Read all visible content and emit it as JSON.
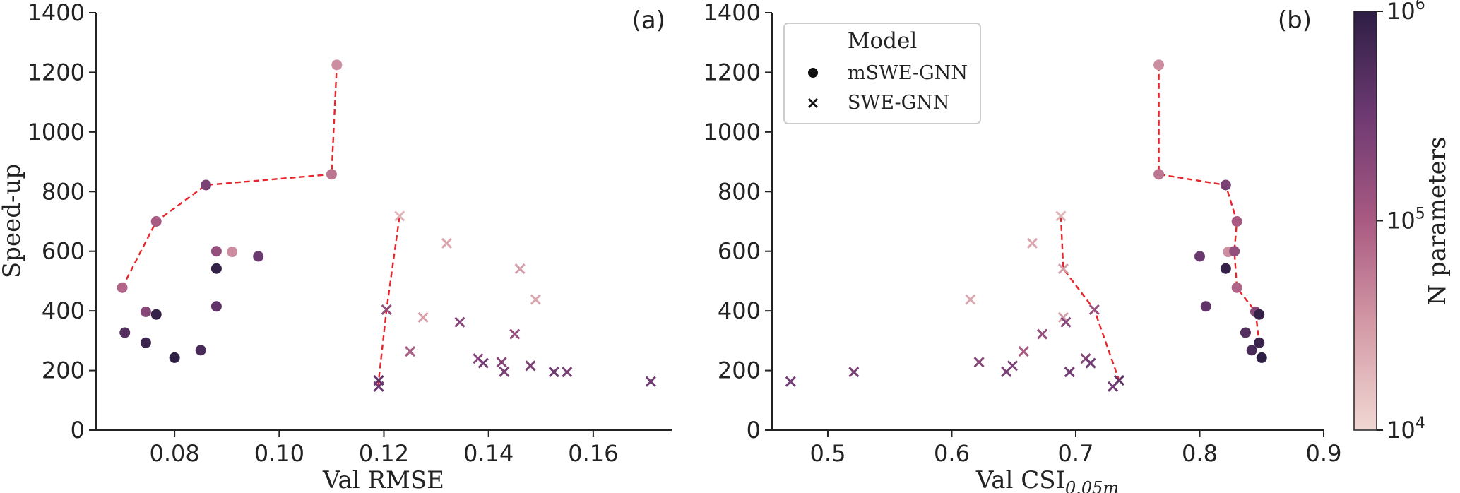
{
  "chart_data": [
    {
      "type": "scatter",
      "panel_label": "(a)",
      "xlabel": "Val RMSE",
      "ylabel": "Speed-up",
      "xlim": [
        0.065,
        0.175
      ],
      "ylim": [
        0,
        1400
      ],
      "xticks": [
        "0.08",
        "0.10",
        "0.12",
        "0.14",
        "0.16"
      ],
      "xtick_values": [
        0.08,
        0.1,
        0.12,
        0.14,
        0.16
      ],
      "yticks": [
        "0",
        "200",
        "400",
        "600",
        "800",
        "1000",
        "1200",
        "1400"
      ],
      "ytick_values": [
        0,
        200,
        400,
        600,
        800,
        1000,
        1200,
        1400
      ],
      "series": [
        {
          "name": "mSWE-GNN",
          "marker": "circle",
          "points": [
            {
              "x": 0.07,
              "y": 478,
              "n": 80000
            },
            {
              "x": 0.0765,
              "y": 700,
              "n": 100000
            },
            {
              "x": 0.086,
              "y": 822,
              "n": 250000
            },
            {
              "x": 0.11,
              "y": 858,
              "n": 60000
            },
            {
              "x": 0.111,
              "y": 1225,
              "n": 40000
            },
            {
              "x": 0.088,
              "y": 600,
              "n": 150000
            },
            {
              "x": 0.091,
              "y": 598,
              "n": 40000
            },
            {
              "x": 0.096,
              "y": 583,
              "n": 350000
            },
            {
              "x": 0.088,
              "y": 542,
              "n": 900000
            },
            {
              "x": 0.088,
              "y": 415,
              "n": 400000
            },
            {
              "x": 0.0745,
              "y": 397,
              "n": 200000
            },
            {
              "x": 0.0765,
              "y": 388,
              "n": 900000
            },
            {
              "x": 0.0705,
              "y": 327,
              "n": 500000
            },
            {
              "x": 0.0745,
              "y": 293,
              "n": 800000
            },
            {
              "x": 0.08,
              "y": 243,
              "n": 1000000
            },
            {
              "x": 0.085,
              "y": 268,
              "n": 600000
            }
          ]
        },
        {
          "name": "SWE-GNN",
          "marker": "x",
          "points": [
            {
              "x": 0.123,
              "y": 718,
              "n": 20000
            },
            {
              "x": 0.132,
              "y": 627,
              "n": 25000
            },
            {
              "x": 0.146,
              "y": 541,
              "n": 30000
            },
            {
              "x": 0.149,
              "y": 438,
              "n": 25000
            },
            {
              "x": 0.1205,
              "y": 404,
              "n": 150000
            },
            {
              "x": 0.1275,
              "y": 378,
              "n": 30000
            },
            {
              "x": 0.1345,
              "y": 362,
              "n": 200000
            },
            {
              "x": 0.145,
              "y": 322,
              "n": 150000
            },
            {
              "x": 0.125,
              "y": 264,
              "n": 100000
            },
            {
              "x": 0.138,
              "y": 240,
              "n": 200000
            },
            {
              "x": 0.139,
              "y": 225,
              "n": 300000
            },
            {
              "x": 0.1425,
              "y": 228,
              "n": 200000
            },
            {
              "x": 0.148,
              "y": 216,
              "n": 250000
            },
            {
              "x": 0.143,
              "y": 196,
              "n": 250000
            },
            {
              "x": 0.1525,
              "y": 195,
              "n": 300000
            },
            {
              "x": 0.155,
              "y": 195,
              "n": 250000
            },
            {
              "x": 0.171,
              "y": 163,
              "n": 300000
            },
            {
              "x": 0.119,
              "y": 167,
              "n": 400000
            },
            {
              "x": 0.119,
              "y": 146,
              "n": 300000
            }
          ]
        }
      ],
      "pareto_fronts": [
        [
          [
            0.07,
            478
          ],
          [
            0.0765,
            700
          ],
          [
            0.086,
            822
          ],
          [
            0.11,
            858
          ],
          [
            0.111,
            1225
          ]
        ],
        [
          [
            0.119,
            146
          ],
          [
            0.119,
            167
          ],
          [
            0.1205,
            404
          ],
          [
            0.123,
            718
          ]
        ]
      ]
    },
    {
      "type": "scatter",
      "panel_label": "(b)",
      "xlabel": "Val CSI",
      "xlabel_sub": "0.05m",
      "ylabel": "",
      "xlim": [
        0.455,
        0.9
      ],
      "ylim": [
        0,
        1400
      ],
      "xticks": [
        "0.5",
        "0.6",
        "0.7",
        "0.8",
        "0.9"
      ],
      "xtick_values": [
        0.5,
        0.6,
        0.7,
        0.8,
        0.9
      ],
      "yticks": [
        "0",
        "200",
        "400",
        "600",
        "800",
        "1000",
        "1200",
        "1400"
      ],
      "ytick_values": [
        0,
        200,
        400,
        600,
        800,
        1000,
        1200,
        1400
      ],
      "series": [
        {
          "name": "mSWE-GNN",
          "marker": "circle",
          "points": [
            {
              "x": 0.767,
              "y": 1225,
              "n": 40000
            },
            {
              "x": 0.767,
              "y": 858,
              "n": 60000
            },
            {
              "x": 0.821,
              "y": 822,
              "n": 250000
            },
            {
              "x": 0.83,
              "y": 700,
              "n": 100000
            },
            {
              "x": 0.823,
              "y": 598,
              "n": 40000
            },
            {
              "x": 0.828,
              "y": 600,
              "n": 150000
            },
            {
              "x": 0.8,
              "y": 583,
              "n": 350000
            },
            {
              "x": 0.821,
              "y": 542,
              "n": 900000
            },
            {
              "x": 0.83,
              "y": 478,
              "n": 80000
            },
            {
              "x": 0.805,
              "y": 415,
              "n": 400000
            },
            {
              "x": 0.845,
              "y": 397,
              "n": 200000
            },
            {
              "x": 0.848,
              "y": 388,
              "n": 900000
            },
            {
              "x": 0.837,
              "y": 327,
              "n": 500000
            },
            {
              "x": 0.848,
              "y": 293,
              "n": 800000
            },
            {
              "x": 0.842,
              "y": 268,
              "n": 600000
            },
            {
              "x": 0.85,
              "y": 243,
              "n": 1000000
            }
          ]
        },
        {
          "name": "SWE-GNN",
          "marker": "x",
          "points": [
            {
              "x": 0.688,
              "y": 718,
              "n": 20000
            },
            {
              "x": 0.665,
              "y": 627,
              "n": 25000
            },
            {
              "x": 0.69,
              "y": 541,
              "n": 30000
            },
            {
              "x": 0.615,
              "y": 438,
              "n": 25000
            },
            {
              "x": 0.69,
              "y": 378,
              "n": 30000
            },
            {
              "x": 0.692,
              "y": 362,
              "n": 200000
            },
            {
              "x": 0.715,
              "y": 404,
              "n": 150000
            },
            {
              "x": 0.673,
              "y": 322,
              "n": 150000
            },
            {
              "x": 0.658,
              "y": 264,
              "n": 100000
            },
            {
              "x": 0.708,
              "y": 240,
              "n": 200000
            },
            {
              "x": 0.712,
              "y": 225,
              "n": 300000
            },
            {
              "x": 0.622,
              "y": 228,
              "n": 200000
            },
            {
              "x": 0.649,
              "y": 216,
              "n": 250000
            },
            {
              "x": 0.644,
              "y": 196,
              "n": 250000
            },
            {
              "x": 0.695,
              "y": 195,
              "n": 300000
            },
            {
              "x": 0.521,
              "y": 195,
              "n": 250000
            },
            {
              "x": 0.47,
              "y": 163,
              "n": 300000
            },
            {
              "x": 0.735,
              "y": 167,
              "n": 400000
            },
            {
              "x": 0.73,
              "y": 146,
              "n": 300000
            }
          ]
        }
      ],
      "pareto_fronts": [
        [
          [
            0.767,
            1225
          ],
          [
            0.767,
            858
          ],
          [
            0.821,
            822
          ],
          [
            0.83,
            700
          ],
          [
            0.828,
            600
          ],
          [
            0.83,
            478
          ],
          [
            0.845,
            397
          ],
          [
            0.848,
            293
          ]
        ],
        [
          [
            0.688,
            718
          ],
          [
            0.69,
            541
          ],
          [
            0.715,
            404
          ],
          [
            0.735,
            167
          ]
        ]
      ]
    }
  ],
  "legend": {
    "title": "Model",
    "items": [
      {
        "label": "mSWE-GNN",
        "marker": "circle"
      },
      {
        "label": "SWE-GNN",
        "marker": "x"
      }
    ]
  },
  "colorbar": {
    "label": "N parameters",
    "scale": "log",
    "min": 10000,
    "max": 1000000,
    "tick_base": "10",
    "tick_exponents": [
      "4",
      "5",
      "6"
    ],
    "colors": [
      "#f0d8d3",
      "#d49aa6",
      "#a95a82",
      "#6e3a72",
      "#2d1e44"
    ]
  },
  "styles": {
    "pareto_color": "#e8252b"
  }
}
